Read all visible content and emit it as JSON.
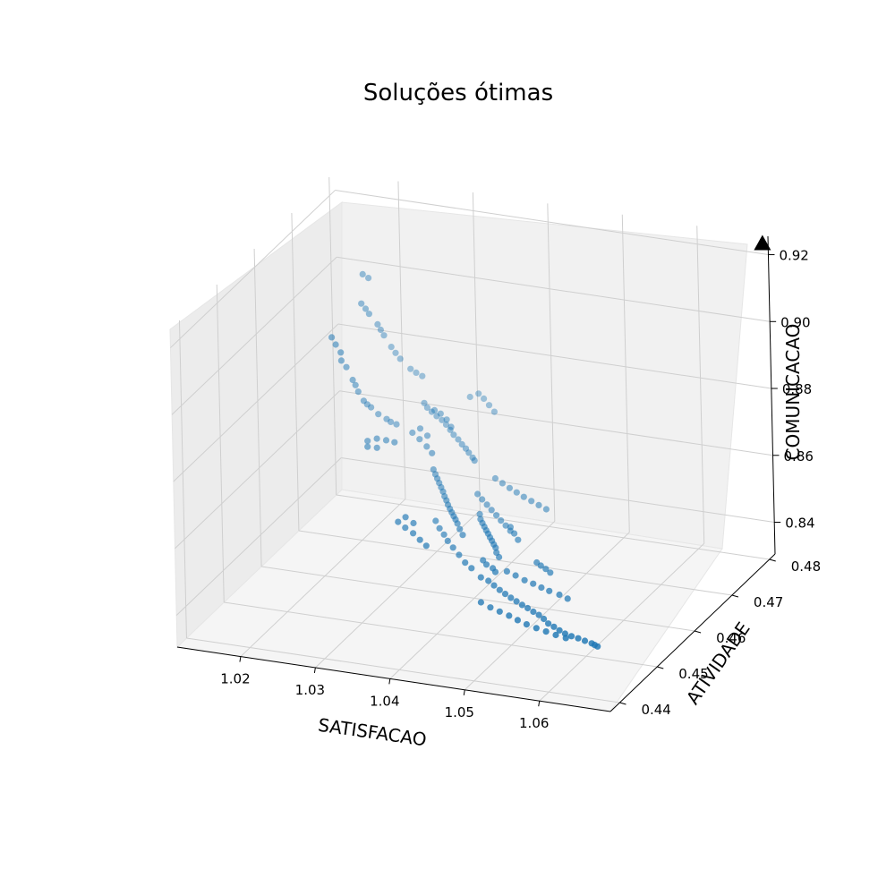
{
  "chart_data": {
    "type": "scatter",
    "projection": "3d",
    "title": "Soluções ótimas",
    "xlabel": "SATISFACAO",
    "ylabel": "ATIVIDADE",
    "zlabel": "COMUNICACAO",
    "xlim": [
      1.0115,
      1.0695
    ],
    "ylim": [
      0.4375,
      0.4815
    ],
    "zlim": [
      0.8305,
      0.9255
    ],
    "grid": true,
    "x_ticks": [
      "1.02",
      "1.03",
      "1.04",
      "1.05",
      "1.06"
    ],
    "y_ticks": [
      "0.44",
      "0.45",
      "0.46",
      "0.47",
      "0.48"
    ],
    "z_ticks": [
      "0.84",
      "0.86",
      "0.88",
      "0.90",
      "0.92"
    ],
    "colors": {
      "points": "#1f77b4",
      "marker": "#000000"
    },
    "series": [
      {
        "marker": "circle",
        "points": [
          [
            1.0165,
            0.47,
            0.89
          ],
          [
            1.0169,
            0.4715,
            0.884
          ],
          [
            1.0171,
            0.4725,
            0.8786
          ],
          [
            1.0174,
            0.4735,
            0.8738
          ],
          [
            1.0178,
            0.4741,
            0.8698
          ],
          [
            1.0183,
            0.4745,
            0.8668
          ],
          [
            1.0189,
            0.4752,
            0.8643
          ],
          [
            1.0197,
            0.4755,
            0.8622
          ],
          [
            1.0206,
            0.4759,
            0.8606
          ],
          [
            1.0218,
            0.4761,
            0.8592
          ],
          [
            1.0166,
            0.4708,
            0.887
          ],
          [
            1.0168,
            0.4718,
            0.8812
          ],
          [
            1.0176,
            0.4738,
            0.872
          ],
          [
            1.0186,
            0.4748,
            0.8655
          ],
          [
            1.0211,
            0.476,
            0.8598
          ],
          [
            1.0175,
            0.476,
            0.894
          ],
          [
            1.018,
            0.477,
            0.89
          ],
          [
            1.0186,
            0.478,
            0.886
          ],
          [
            1.019,
            0.4788,
            0.882
          ],
          [
            1.0196,
            0.4795,
            0.878
          ],
          [
            1.0205,
            0.48,
            0.8742
          ],
          [
            1.0216,
            0.4805,
            0.871
          ],
          [
            1.023,
            0.4808,
            0.869
          ],
          [
            1.0178,
            0.4765,
            0.892
          ],
          [
            1.0188,
            0.4784,
            0.884
          ],
          [
            1.02,
            0.4798,
            0.876
          ],
          [
            1.0223,
            0.4806,
            0.87
          ],
          [
            1.017,
            0.4775,
            0.901
          ],
          [
            1.0175,
            0.478,
            0.8995
          ],
          [
            1.0245,
            0.479,
            0.862
          ],
          [
            1.026,
            0.4785,
            0.8605
          ],
          [
            1.0275,
            0.478,
            0.859
          ],
          [
            1.029,
            0.477,
            0.8575
          ],
          [
            1.0305,
            0.4762,
            0.856
          ],
          [
            1.0318,
            0.4754,
            0.8548
          ],
          [
            1.0252,
            0.4788,
            0.8612
          ],
          [
            1.0268,
            0.4783,
            0.8598
          ],
          [
            1.0283,
            0.4775,
            0.8582
          ],
          [
            1.0298,
            0.4766,
            0.8568
          ],
          [
            1.0312,
            0.4758,
            0.8554
          ],
          [
            1.024,
            0.4792,
            0.863
          ],
          [
            1.0325,
            0.475,
            0.854
          ],
          [
            1.033,
            0.4745,
            0.8538
          ],
          [
            1.029,
            0.4715,
            0.853
          ],
          [
            1.03,
            0.4705,
            0.8517
          ],
          [
            1.031,
            0.4695,
            0.8505
          ],
          [
            1.032,
            0.4684,
            0.8493
          ],
          [
            1.033,
            0.4673,
            0.8483
          ],
          [
            1.034,
            0.4663,
            0.8474
          ],
          [
            1.035,
            0.4653,
            0.8467
          ],
          [
            1.0295,
            0.471,
            0.8523
          ],
          [
            1.0305,
            0.47,
            0.8511
          ],
          [
            1.0315,
            0.469,
            0.8499
          ],
          [
            1.0325,
            0.4679,
            0.8488
          ],
          [
            1.0335,
            0.4668,
            0.8478
          ],
          [
            1.0345,
            0.4658,
            0.847
          ],
          [
            1.0355,
            0.4648,
            0.8462
          ],
          [
            1.0362,
            0.464,
            0.8456
          ],
          [
            1.037,
            0.4632,
            0.845
          ],
          [
            1.038,
            0.466,
            0.847
          ],
          [
            1.039,
            0.465,
            0.8462
          ],
          [
            1.04,
            0.464,
            0.8455
          ],
          [
            1.041,
            0.463,
            0.8448
          ],
          [
            1.042,
            0.462,
            0.8441
          ],
          [
            1.0385,
            0.4655,
            0.8466
          ],
          [
            1.0395,
            0.4645,
            0.8458
          ],
          [
            1.0405,
            0.4635,
            0.8451
          ],
          [
            1.0415,
            0.4625,
            0.8444
          ],
          [
            1.0425,
            0.4612,
            0.8437
          ],
          [
            1.0375,
            0.4668,
            0.8475
          ],
          [
            1.0432,
            0.4605,
            0.8433
          ],
          [
            1.043,
            0.456,
            0.842
          ],
          [
            1.044,
            0.456,
            0.8413
          ],
          [
            1.045,
            0.4555,
            0.8408
          ],
          [
            1.046,
            0.455,
            0.8403
          ],
          [
            1.047,
            0.4545,
            0.84
          ],
          [
            1.048,
            0.454,
            0.8397
          ],
          [
            1.049,
            0.4535,
            0.8395
          ],
          [
            1.05,
            0.453,
            0.8393
          ],
          [
            1.051,
            0.4525,
            0.8392
          ],
          [
            1.052,
            0.452,
            0.839
          ],
          [
            1.053,
            0.4515,
            0.8389
          ],
          [
            1.054,
            0.4508,
            0.8388
          ],
          [
            1.055,
            0.45,
            0.8386
          ],
          [
            1.056,
            0.4495,
            0.8385
          ],
          [
            1.057,
            0.449,
            0.8383
          ],
          [
            1.058,
            0.4485,
            0.8382
          ],
          [
            1.059,
            0.4482,
            0.8381
          ],
          [
            1.06,
            0.448,
            0.838
          ],
          [
            1.061,
            0.4478,
            0.8378
          ],
          [
            1.062,
            0.4476,
            0.8376
          ],
          [
            1.0625,
            0.4474,
            0.8375
          ],
          [
            1.063,
            0.4472,
            0.8374
          ],
          [
            1.045,
            0.452,
            0.8395
          ],
          [
            1.0465,
            0.4515,
            0.839
          ],
          [
            1.048,
            0.451,
            0.8388
          ],
          [
            1.0495,
            0.4505,
            0.8386
          ],
          [
            1.051,
            0.4498,
            0.8385
          ],
          [
            1.0525,
            0.4492,
            0.8384
          ],
          [
            1.054,
            0.4488,
            0.8382
          ],
          [
            1.0555,
            0.4484,
            0.8381
          ],
          [
            1.057,
            0.448,
            0.838
          ],
          [
            1.0585,
            0.4477,
            0.8379
          ],
          [
            1.033,
            0.464,
            0.847
          ],
          [
            1.034,
            0.463,
            0.8462
          ],
          [
            1.035,
            0.4622,
            0.8455
          ],
          [
            1.036,
            0.4612,
            0.845
          ],
          [
            1.0372,
            0.4602,
            0.8445
          ],
          [
            1.0385,
            0.4592,
            0.8438
          ],
          [
            1.0398,
            0.4582,
            0.843
          ],
          [
            1.041,
            0.4575,
            0.8425
          ],
          [
            1.036,
            0.474,
            0.85
          ],
          [
            1.0372,
            0.4735,
            0.8495
          ],
          [
            1.0384,
            0.473,
            0.849
          ],
          [
            1.0396,
            0.4725,
            0.8486
          ],
          [
            1.0408,
            0.472,
            0.8482
          ],
          [
            1.042,
            0.4716,
            0.8478
          ],
          [
            1.0432,
            0.4712,
            0.8474
          ],
          [
            1.0444,
            0.4708,
            0.847
          ],
          [
            1.0346,
            0.472,
            0.847
          ],
          [
            1.0356,
            0.4712,
            0.8466
          ],
          [
            1.0366,
            0.4705,
            0.8461
          ],
          [
            1.0376,
            0.4697,
            0.8457
          ],
          [
            1.0386,
            0.469,
            0.8452
          ],
          [
            1.0396,
            0.4682,
            0.8448
          ],
          [
            1.0406,
            0.4675,
            0.8444
          ],
          [
            1.0416,
            0.4667,
            0.844
          ],
          [
            1.0455,
            0.458,
            0.8425
          ],
          [
            1.0468,
            0.4577,
            0.842
          ],
          [
            1.0482,
            0.4573,
            0.8415
          ],
          [
            1.0495,
            0.457,
            0.8412
          ],
          [
            1.0508,
            0.4566,
            0.8409
          ],
          [
            1.052,
            0.4563,
            0.8406
          ],
          [
            1.0535,
            0.456,
            0.8403
          ],
          [
            1.0548,
            0.4556,
            0.84
          ],
          [
            1.0418,
            0.459,
            0.8435
          ],
          [
            1.0425,
            0.4585,
            0.843
          ],
          [
            1.0436,
            0.458,
            0.8428
          ],
          [
            1.0442,
            0.4575,
            0.8424
          ],
          [
            1.042,
            0.466,
            0.846
          ],
          [
            1.043,
            0.465,
            0.8455
          ],
          [
            1.044,
            0.464,
            0.845
          ],
          [
            1.0485,
            0.46,
            0.844
          ],
          [
            1.0492,
            0.4597,
            0.8436
          ],
          [
            1.05,
            0.4594,
            0.8432
          ],
          [
            1.0508,
            0.459,
            0.8428
          ],
          [
            1.021,
            0.47,
            0.8605
          ],
          [
            1.022,
            0.4705,
            0.861
          ],
          [
            1.023,
            0.471,
            0.8603
          ],
          [
            1.024,
            0.4712,
            0.8598
          ],
          [
            1.0215,
            0.469,
            0.86
          ],
          [
            1.0225,
            0.4695,
            0.8595
          ],
          [
            1.025,
            0.474,
            0.86
          ],
          [
            1.0262,
            0.4735,
            0.859
          ],
          [
            1.0275,
            0.4728,
            0.858
          ],
          [
            1.0285,
            0.4722,
            0.857
          ],
          [
            1.0258,
            0.4745,
            0.861
          ],
          [
            1.027,
            0.474,
            0.8598
          ],
          [
            1.0265,
            0.477,
            0.864
          ],
          [
            1.0272,
            0.4772,
            0.863
          ],
          [
            1.0282,
            0.4768,
            0.862
          ],
          [
            1.0292,
            0.476,
            0.861
          ],
          [
            1.03,
            0.46,
            0.85
          ],
          [
            1.0312,
            0.4595,
            0.8492
          ],
          [
            1.0325,
            0.459,
            0.8485
          ],
          [
            1.0338,
            0.4582,
            0.8478
          ],
          [
            1.035,
            0.4575,
            0.8472
          ],
          [
            1.0305,
            0.461,
            0.8505
          ],
          [
            1.0318,
            0.4605,
            0.8497
          ],
          [
            1.029,
            0.4815,
            0.864
          ],
          [
            1.03,
            0.4818,
            0.865
          ],
          [
            1.031,
            0.4812,
            0.8645
          ],
          [
            1.032,
            0.4806,
            0.8635
          ],
          [
            1.033,
            0.48,
            0.8625
          ]
        ]
      },
      {
        "marker": "triangle",
        "points": [
          [
            1.069,
            0.481,
            0.924
          ]
        ]
      }
    ]
  }
}
